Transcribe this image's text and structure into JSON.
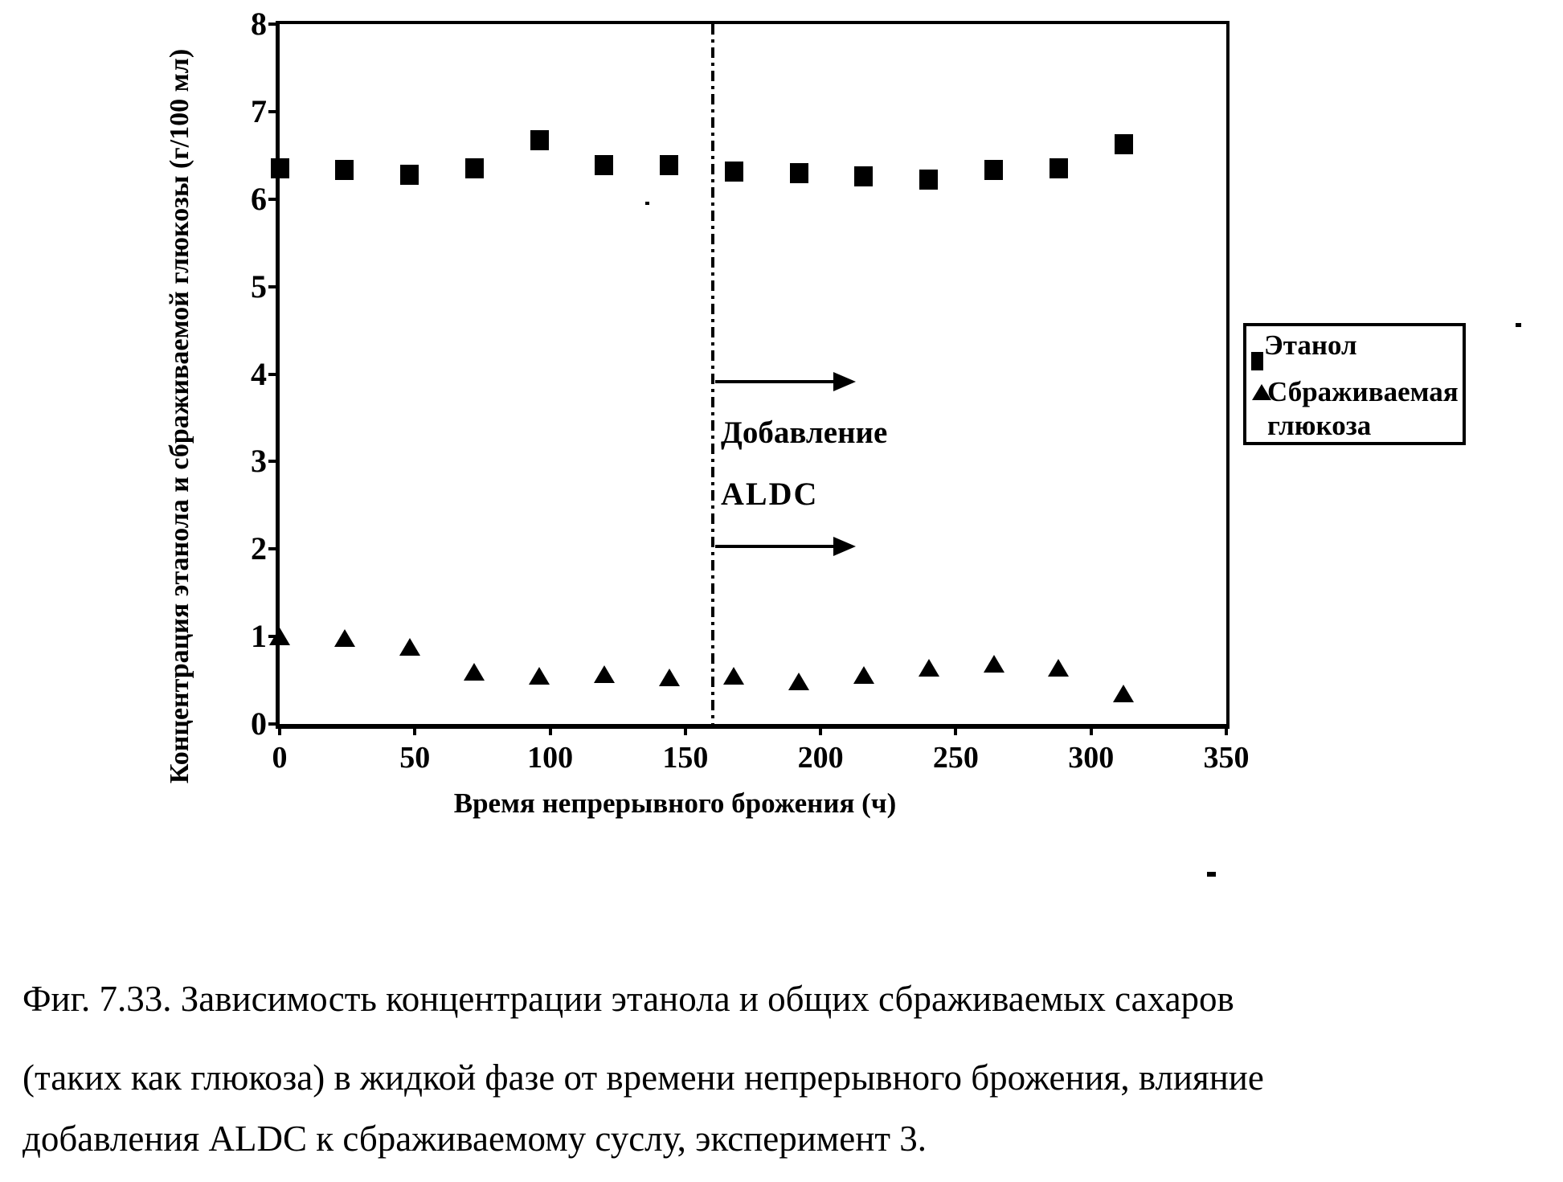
{
  "figure": {
    "y_axis_label": "Концентрация этанола и сбраживаемой глюкозы (г/100 мл)",
    "x_axis_label": "Время непрерывного брожения (ч)",
    "annotation": {
      "line1": "Добавление",
      "line2": "ALDC"
    },
    "legend": {
      "ethanol_label": "Этанол",
      "glucose_label_line1": "Сбраживаемая",
      "glucose_label_line2": "глюкоза"
    },
    "caption_lines": [
      "Фиг. 7.33. Зависимость концентрации этанола и общих сбраживаемых сахаров",
      "(таких как глюкоза) в жидкой фазе от времени непрерывного брожения, влияние",
      "добавления ALDC к сбраживаемому суслу, эксперимент 3."
    ],
    "colors": {
      "ink": "#000000",
      "paper": "#ffffff"
    }
  },
  "chart_data": {
    "type": "scatter",
    "title": "",
    "xlabel": "Время непрерывного брожения (ч)",
    "ylabel": "Концентрация этанола и сбраживаемой глюкозы (г/100 мл)",
    "xlim": [
      0,
      350
    ],
    "ylim": [
      0,
      8
    ],
    "x_ticks": [
      0,
      50,
      100,
      150,
      200,
      250,
      300,
      350
    ],
    "y_ticks": [
      0,
      1,
      2,
      3,
      4,
      5,
      6,
      7,
      8
    ],
    "grid": false,
    "legend_position": "right-outside",
    "x": [
      0,
      24,
      48,
      72,
      96,
      120,
      144,
      168,
      192,
      216,
      240,
      264,
      288,
      312
    ],
    "series": [
      {
        "name": "Этанол",
        "marker": "square",
        "values": [
          6.35,
          6.33,
          6.28,
          6.35,
          6.67,
          6.39,
          6.39,
          6.31,
          6.3,
          6.26,
          6.22,
          6.33,
          6.35,
          6.63
        ]
      },
      {
        "name": "Сбраживаемая глюкоза",
        "marker": "triangle",
        "values": [
          1.0,
          0.98,
          0.88,
          0.6,
          0.55,
          0.57,
          0.53,
          0.55,
          0.49,
          0.56,
          0.64,
          0.69,
          0.64,
          0.35
        ]
      }
    ],
    "event_line_x": 160,
    "arrows": [
      {
        "x_start": 160,
        "x_end": 213,
        "y": 3.91
      },
      {
        "x_start": 160,
        "x_end": 213,
        "y": 2.03
      }
    ]
  }
}
